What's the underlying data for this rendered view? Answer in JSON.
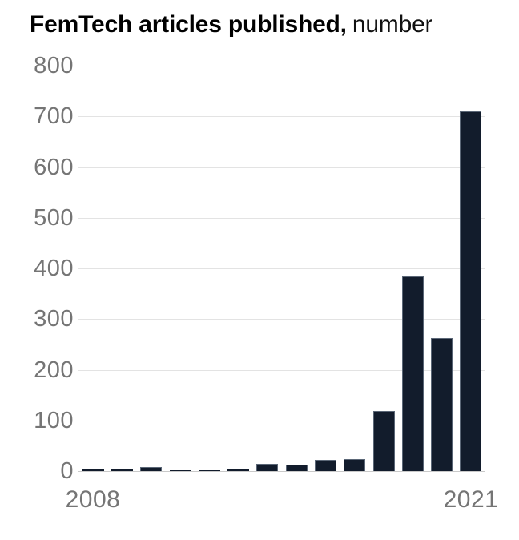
{
  "title": {
    "bold": "FemTech articles published,",
    "regular": "number"
  },
  "colors": {
    "bar_fill": "#121c2c",
    "bar_edge": "#748090",
    "gridline": "#e3e3e3",
    "axis_line": "#c9c9c9",
    "axis_label": "#757575",
    "title_text": "#000000",
    "background": "#ffffff"
  },
  "chart_data": {
    "type": "bar",
    "title": "FemTech articles published, number",
    "xlabel": "",
    "ylabel": "number",
    "categories": [
      2008,
      2009,
      2010,
      2011,
      2012,
      2013,
      2014,
      2015,
      2016,
      2017,
      2018,
      2019,
      2020,
      2021
    ],
    "values": [
      3,
      3,
      8,
      1,
      1,
      3,
      15,
      12,
      22,
      24,
      118,
      385,
      262,
      710
    ],
    "ylim": [
      0,
      800
    ],
    "yticks": [
      0,
      100,
      200,
      300,
      400,
      500,
      600,
      700,
      800
    ],
    "x_tick_labels_shown": [
      "2008",
      "2021"
    ],
    "grid": true,
    "legend": "none",
    "bar_color": "#121c2c"
  }
}
